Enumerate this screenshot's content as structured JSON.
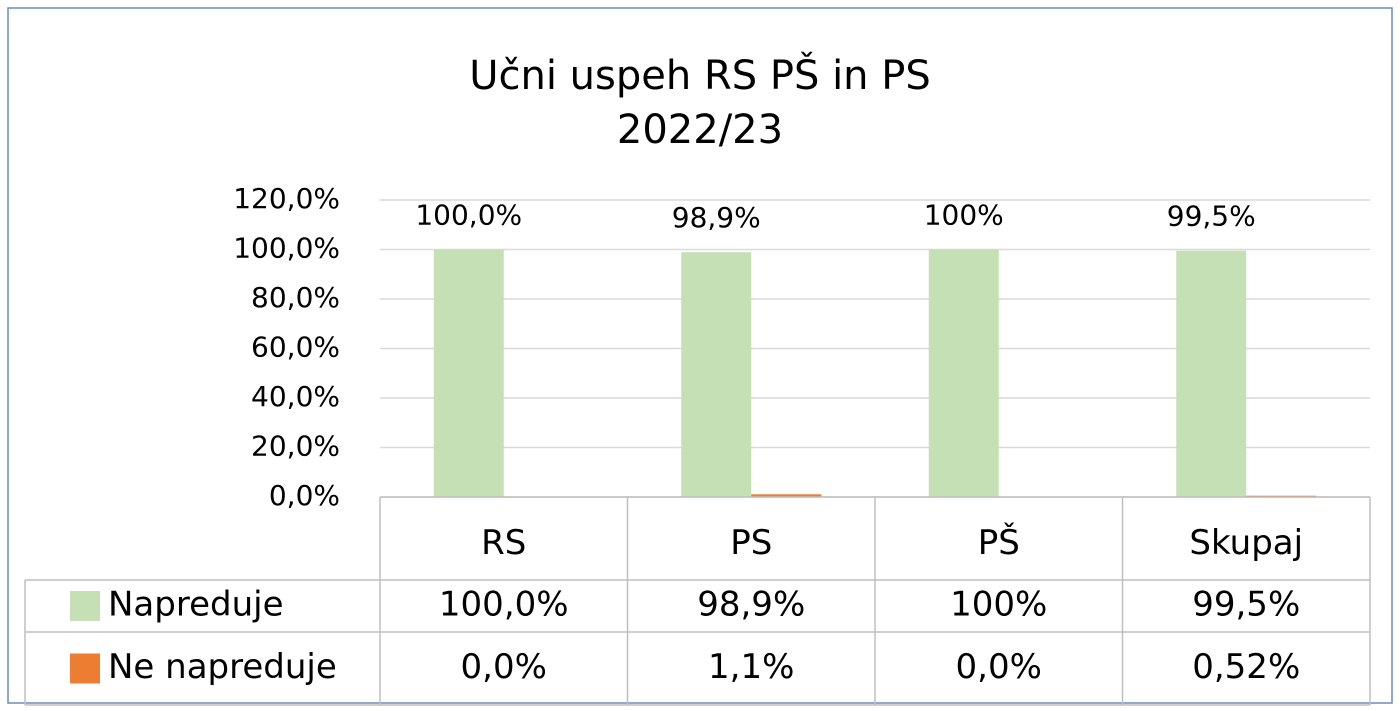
{
  "chart_data": {
    "type": "bar",
    "title": "Učni uspeh RS PŠ in PS",
    "subtitle": "2022/23",
    "categories": [
      "RS",
      "PS",
      "PŠ",
      "Skupaj"
    ],
    "series": [
      {
        "name": "Napreduje",
        "color": "#c5e0b4",
        "values": [
          100,
          98.9,
          100,
          99.5
        ],
        "value_labels": [
          "100,0%",
          "98,9%",
          "100%",
          "99,5%"
        ]
      },
      {
        "name": "Ne napreduje",
        "color": "#ed7d31",
        "values": [
          0,
          1.1,
          0,
          0.52
        ],
        "value_labels": [
          "0,0%",
          "1,1%",
          "0,0%",
          "0,52%"
        ]
      }
    ],
    "ylim": [
      0,
      120
    ],
    "yticks": [
      {
        "value": 0,
        "label": "0,0%"
      },
      {
        "value": 20,
        "label": "20,0%"
      },
      {
        "value": 40,
        "label": "40,0%"
      },
      {
        "value": 60,
        "label": "60,0%"
      },
      {
        "value": 80,
        "label": "80,0%"
      },
      {
        "value": 100,
        "label": "100,0%"
      },
      {
        "value": 120,
        "label": "120,0%"
      }
    ],
    "grid": true,
    "data_labels_series": [
      0
    ]
  }
}
